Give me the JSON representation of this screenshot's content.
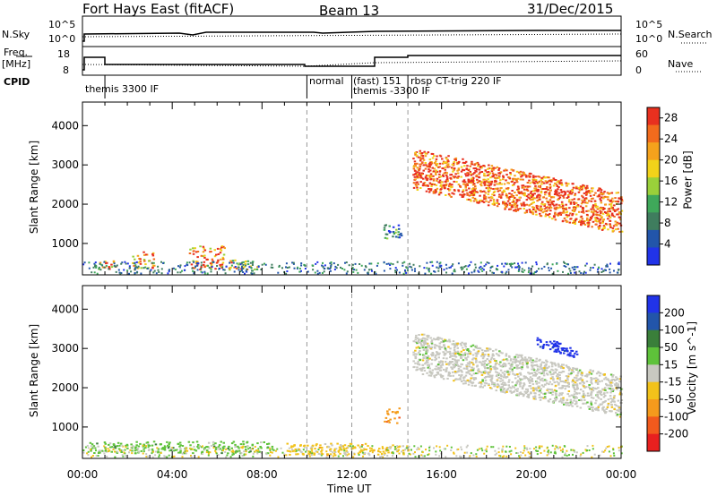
{
  "header": {
    "station": "Fort Hays East (fitACF)",
    "beam": "Beam 13",
    "date": "31/Dec/2015"
  },
  "strip_labels": {
    "nsky": "N.Sky",
    "nsky_ticks": [
      "10^5",
      "10^0"
    ],
    "nsearch": "N.Search",
    "nsearch_ticks": [
      "10^5",
      "10^0"
    ],
    "freq": "Freq.",
    "freq_unit": "[MHz]",
    "freq_ticks": [
      "18",
      "8"
    ],
    "nave": "Nave",
    "nave_ticks": [
      "60",
      "0"
    ],
    "cpid": "CPID"
  },
  "cpid_segments": [
    {
      "label": "themis 3300 IF"
    },
    {
      "label": "normal"
    },
    {
      "label": "(fast) 151"
    },
    {
      "label": "themis -3300 IF"
    },
    {
      "label": "rbsp CT-trig 220 IF"
    }
  ],
  "colors": {
    "power": [
      "#2133e8",
      "#2255aa",
      "#3f7d5e",
      "#3fa85a",
      "#9ad03a",
      "#f2d21a",
      "#f5a21c",
      "#f26b1d",
      "#e8301f"
    ],
    "velocity": [
      "#2133e8",
      "#2255aa",
      "#3a7f3a",
      "#5ec23a",
      "#c8c8c0",
      "#f2c21a",
      "#f59a1c",
      "#f25a1d",
      "#e8201f"
    ]
  },
  "chart_data": [
    {
      "type": "heatmap",
      "title": "Power",
      "ylabel": "Slant Range [km]",
      "xlabel": "Time UT",
      "x_ticks": [
        "00:00",
        "04:00",
        "08:00",
        "12:00",
        "16:00",
        "20:00",
        "00:00"
      ],
      "xlim_hours": [
        0,
        24
      ],
      "y_ticks": [
        1000,
        2000,
        3000,
        4000
      ],
      "ylim": [
        200,
        4600
      ],
      "colorbar": {
        "label": "Power [dB]",
        "ticks": [
          4,
          8,
          12,
          16,
          20,
          24,
          28
        ],
        "range": [
          0,
          30
        ]
      },
      "vertical_markers_hours": [
        10,
        12,
        14.5
      ],
      "features": [
        {
          "time_range": [
            0.7,
            1.5
          ],
          "range_km": [
            350,
            600
          ],
          "power_db": 22
        },
        {
          "time_range": [
            2.2,
            3.2
          ],
          "range_km": [
            350,
            800
          ],
          "power_db": 22
        },
        {
          "time_range": [
            4.7,
            6.3
          ],
          "range_km": [
            350,
            950
          ],
          "power_db": 24
        },
        {
          "time_range": [
            6.5,
            7.8
          ],
          "range_km": [
            350,
            600
          ],
          "power_db": 20
        },
        {
          "time_range": [
            13.3,
            14.2
          ],
          "range_km": [
            1100,
            1500
          ],
          "power_db": 8
        },
        {
          "time_range": [
            14.7,
            24
          ],
          "range_km": [
            1400,
            3300
          ],
          "power_db": 26
        }
      ]
    },
    {
      "type": "heatmap",
      "title": "Velocity",
      "ylabel": "Slant Range [km]",
      "xlabel": "Time UT",
      "x_ticks": [
        "00:00",
        "04:00",
        "08:00",
        "12:00",
        "16:00",
        "20:00",
        "00:00"
      ],
      "xlim_hours": [
        0,
        24
      ],
      "y_ticks": [
        1000,
        2000,
        3000,
        4000
      ],
      "ylim": [
        200,
        4600
      ],
      "colorbar": {
        "label": "Velocity [m s^-1]",
        "ticks": [
          "200",
          "100",
          "50",
          "15",
          "-15",
          "-50",
          "-100",
          "-200"
        ]
      },
      "vertical_markers_hours": [
        10,
        12,
        14.5
      ],
      "features": [
        {
          "time_range": [
            0.3,
            8.5
          ],
          "range_km": [
            350,
            650
          ],
          "velocity": 40
        },
        {
          "time_range": [
            9.0,
            14.5
          ],
          "range_km": [
            300,
            600
          ],
          "velocity": -40
        },
        {
          "time_range": [
            13.4,
            14.1
          ],
          "range_km": [
            1100,
            1500
          ],
          "velocity": -100
        },
        {
          "time_range": [
            14.7,
            24
          ],
          "range_km": [
            1400,
            3300
          ],
          "velocity": 0
        },
        {
          "time_range": [
            20.2,
            22.0
          ],
          "range_km": [
            2800,
            3300
          ],
          "velocity": 200
        }
      ]
    }
  ]
}
